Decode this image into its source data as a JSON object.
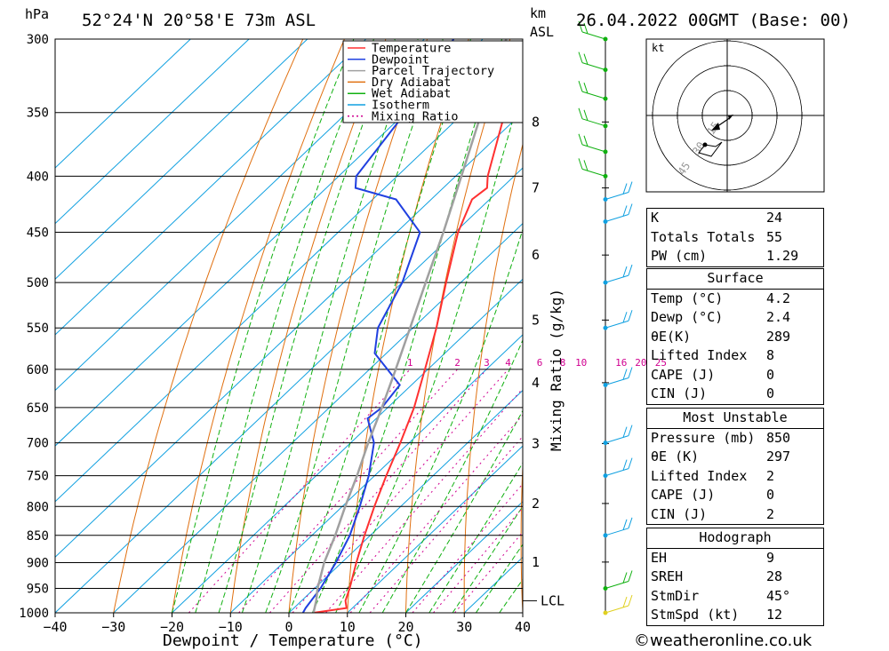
{
  "header": {
    "location": "52°24'N  20°58'E  73m  ASL",
    "date": "26.04.2022  00GMT  (Base: 00)",
    "left_unit": "hPa",
    "km_label": "km",
    "asl_label": "ASL"
  },
  "footer": "©weatheronline.co.uk",
  "chart_data": {
    "type": "line",
    "chart_kind": "skew-t log-p",
    "xlabel": "Dewpoint / Temperature (°C)",
    "ylabel_right": "Mixing Ratio (g/kg)",
    "xlim": [
      -40,
      40
    ],
    "ylim": [
      1000,
      300
    ],
    "y_log_scale": true,
    "x_ticks": [
      -40,
      -30,
      -20,
      -10,
      0,
      10,
      20,
      30,
      40
    ],
    "x_tick_labels": [
      "−40",
      "−30",
      "−20",
      "−10",
      "0",
      "10",
      "20",
      "30",
      "40"
    ],
    "pressure_levels": [
      300,
      350,
      400,
      450,
      500,
      550,
      600,
      650,
      700,
      750,
      800,
      850,
      900,
      950,
      1000
    ],
    "km_ticks": [
      {
        "label": "8",
        "p": 357
      },
      {
        "label": "7",
        "p": 410
      },
      {
        "label": "6",
        "p": 472
      },
      {
        "label": "5",
        "p": 541
      },
      {
        "label": "4",
        "p": 617
      },
      {
        "label": "3",
        "p": 701
      },
      {
        "label": "2",
        "p": 795
      },
      {
        "label": "1",
        "p": 899
      }
    ],
    "lcl_label": "LCL",
    "lcl_pressure": 975,
    "mixing_ratio_labels": [
      "1",
      "2",
      "3",
      "4",
      "6",
      "8",
      "10",
      "16",
      "20",
      "25"
    ],
    "mixing_ratio_values": [
      1,
      2,
      3,
      4,
      6,
      8,
      10,
      16,
      20,
      25
    ],
    "legend_position": "top-right",
    "legend": [
      {
        "name": "Temperature",
        "color": "#ff3030"
      },
      {
        "name": "Dewpoint",
        "color": "#2040e0"
      },
      {
        "name": "Parcel Trajectory",
        "color": "#a0a0a0"
      },
      {
        "name": "Dry Adiabat",
        "color": "#e07010"
      },
      {
        "name": "Wet Adiabat",
        "color": "#10b010"
      },
      {
        "name": "Isotherm",
        "color": "#10a0e0"
      },
      {
        "name": "Mixing Ratio",
        "color": "#d00090"
      }
    ],
    "series": [
      {
        "name": "Temperature",
        "color": "#ff3030",
        "points": [
          [
            1000,
            4.2
          ],
          [
            990,
            9.0
          ],
          [
            975,
            7.5
          ],
          [
            950,
            6.0
          ],
          [
            900,
            2.5
          ],
          [
            850,
            -1.0
          ],
          [
            800,
            -4.5
          ],
          [
            750,
            -8.0
          ],
          [
            700,
            -11.5
          ],
          [
            650,
            -15.5
          ],
          [
            600,
            -20.5
          ],
          [
            550,
            -26.0
          ],
          [
            500,
            -32.5
          ],
          [
            450,
            -39.5
          ],
          [
            420,
            -43.0
          ],
          [
            410,
            -42.5
          ],
          [
            400,
            -44.5
          ],
          [
            350,
            -53.0
          ],
          [
            330,
            -55.0
          ],
          [
            300,
            -59.0
          ]
        ]
      },
      {
        "name": "Dewpoint",
        "color": "#2040e0",
        "points": [
          [
            1000,
            2.4
          ],
          [
            990,
            2.0
          ],
          [
            950,
            1.0
          ],
          [
            900,
            -1.0
          ],
          [
            850,
            -3.5
          ],
          [
            800,
            -7.0
          ],
          [
            750,
            -11.0
          ],
          [
            700,
            -16.0
          ],
          [
            665,
            -21.5
          ],
          [
            650,
            -21.0
          ],
          [
            620,
            -22.0
          ],
          [
            580,
            -32.0
          ],
          [
            550,
            -36.0
          ],
          [
            500,
            -40.0
          ],
          [
            450,
            -46.0
          ],
          [
            420,
            -56.0
          ],
          [
            410,
            -65.0
          ],
          [
            400,
            -67.0
          ],
          [
            350,
            -70.0
          ],
          [
            300,
            -75.0
          ]
        ]
      },
      {
        "name": "Parcel Trajectory",
        "color": "#a0a0a0",
        "points": [
          [
            1000,
            4.2
          ],
          [
            975,
            2.5
          ],
          [
            950,
            0.5
          ],
          [
            900,
            -3.0
          ],
          [
            850,
            -6.0
          ],
          [
            800,
            -9.5
          ],
          [
            750,
            -13.0
          ],
          [
            700,
            -17.0
          ],
          [
            650,
            -21.0
          ],
          [
            600,
            -25.5
          ],
          [
            550,
            -30.5
          ],
          [
            500,
            -36.0
          ],
          [
            450,
            -42.0
          ],
          [
            400,
            -49.0
          ],
          [
            350,
            -57.0
          ],
          [
            300,
            -66.0
          ]
        ]
      }
    ]
  },
  "hodograph": {
    "unit": "kt",
    "ring_labels": [
      "15",
      "30",
      "45"
    ]
  },
  "indices": {
    "top": [
      {
        "label": "K",
        "value": "24"
      },
      {
        "label": "Totals Totals",
        "value": "55"
      },
      {
        "label": "PW (cm)",
        "value": "1.29"
      }
    ],
    "surface": {
      "title": "Surface",
      "rows": [
        {
          "label": "Temp (°C)",
          "value": "4.2"
        },
        {
          "label": "Dewp (°C)",
          "value": "2.4"
        },
        {
          "label": "θE(K)",
          "value": "289"
        },
        {
          "label": "Lifted Index",
          "value": "8"
        },
        {
          "label": "CAPE (J)",
          "value": "0"
        },
        {
          "label": "CIN (J)",
          "value": "0"
        }
      ]
    },
    "most_unstable": {
      "title": "Most Unstable",
      "rows": [
        {
          "label": "Pressure (mb)",
          "value": "850"
        },
        {
          "label": "θE (K)",
          "value": "297"
        },
        {
          "label": "Lifted Index",
          "value": "2"
        },
        {
          "label": "CAPE (J)",
          "value": "0"
        },
        {
          "label": "CIN (J)",
          "value": "2"
        }
      ]
    },
    "hodograph": {
      "title": "Hodograph",
      "rows": [
        {
          "label": "EH",
          "value": "9"
        },
        {
          "label": "SREH",
          "value": "28"
        },
        {
          "label": "StmDir",
          "value": "45°"
        },
        {
          "label": "StmSpd (kt)",
          "value": "12"
        }
      ]
    }
  }
}
